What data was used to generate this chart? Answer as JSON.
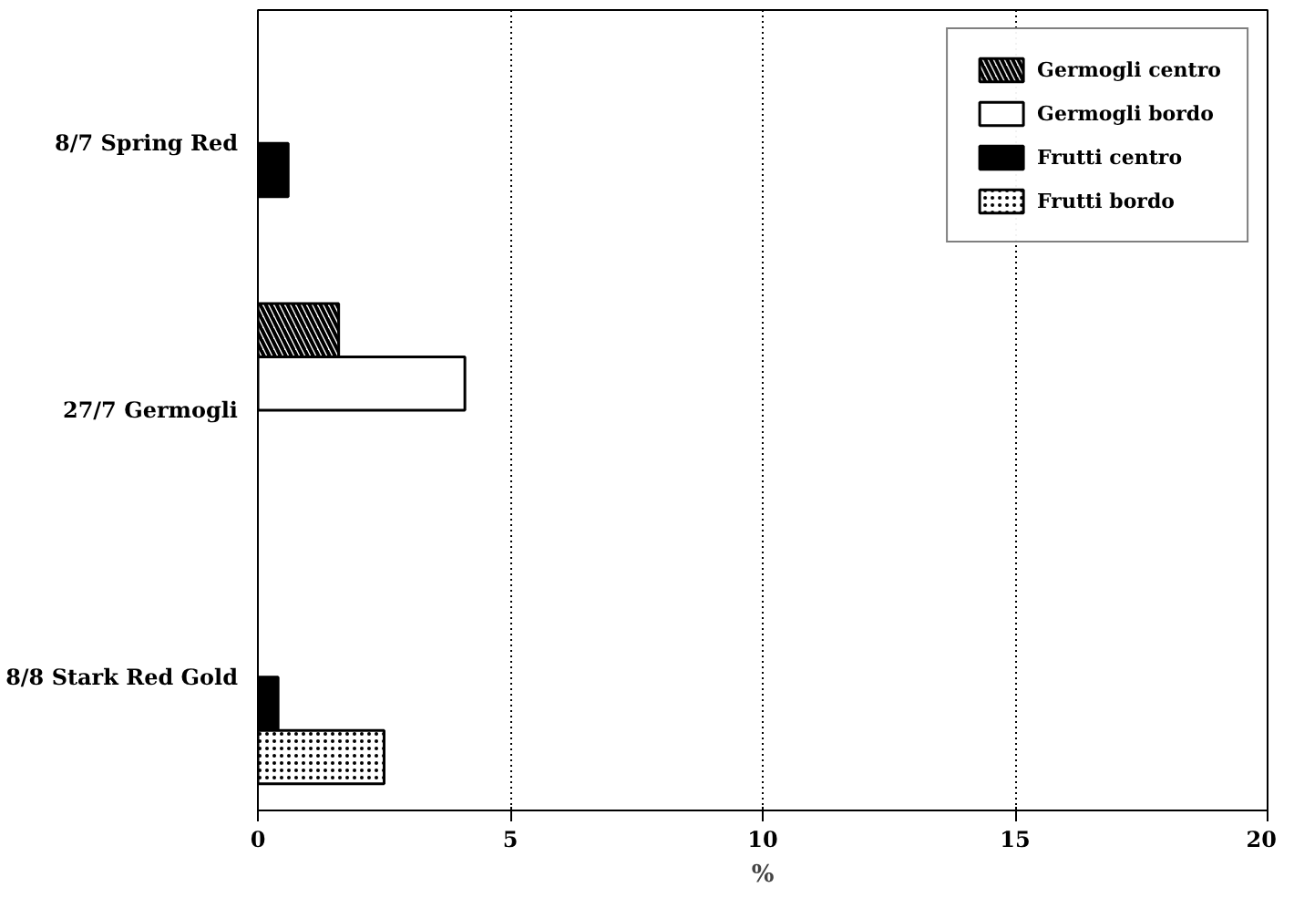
{
  "chart_data": {
    "type": "bar",
    "orientation": "horizontal",
    "xlabel": "%",
    "categories": [
      "8/7 Spring Red",
      "27/7 Germogli",
      "8/8 Stark Red Gold"
    ],
    "series": [
      {
        "name": "Germogli centro",
        "color": "#ffffff",
        "values": [
          null,
          1.6,
          null
        ]
      },
      {
        "name": "Germogli bordo",
        "color": "#ffffff",
        "values": [
          null,
          4.1,
          null
        ]
      },
      {
        "name": "Frutti centro",
        "color": "#000000",
        "values": [
          0.6,
          null,
          0.4
        ]
      },
      {
        "name": "Frutti bordo",
        "color": "#ffffff",
        "values": [
          null,
          null,
          2.5
        ]
      }
    ],
    "xlim": [
      0,
      20
    ],
    "xticks": [
      0,
      5,
      10,
      15,
      20
    ],
    "grid": "x",
    "legend": "top right"
  }
}
